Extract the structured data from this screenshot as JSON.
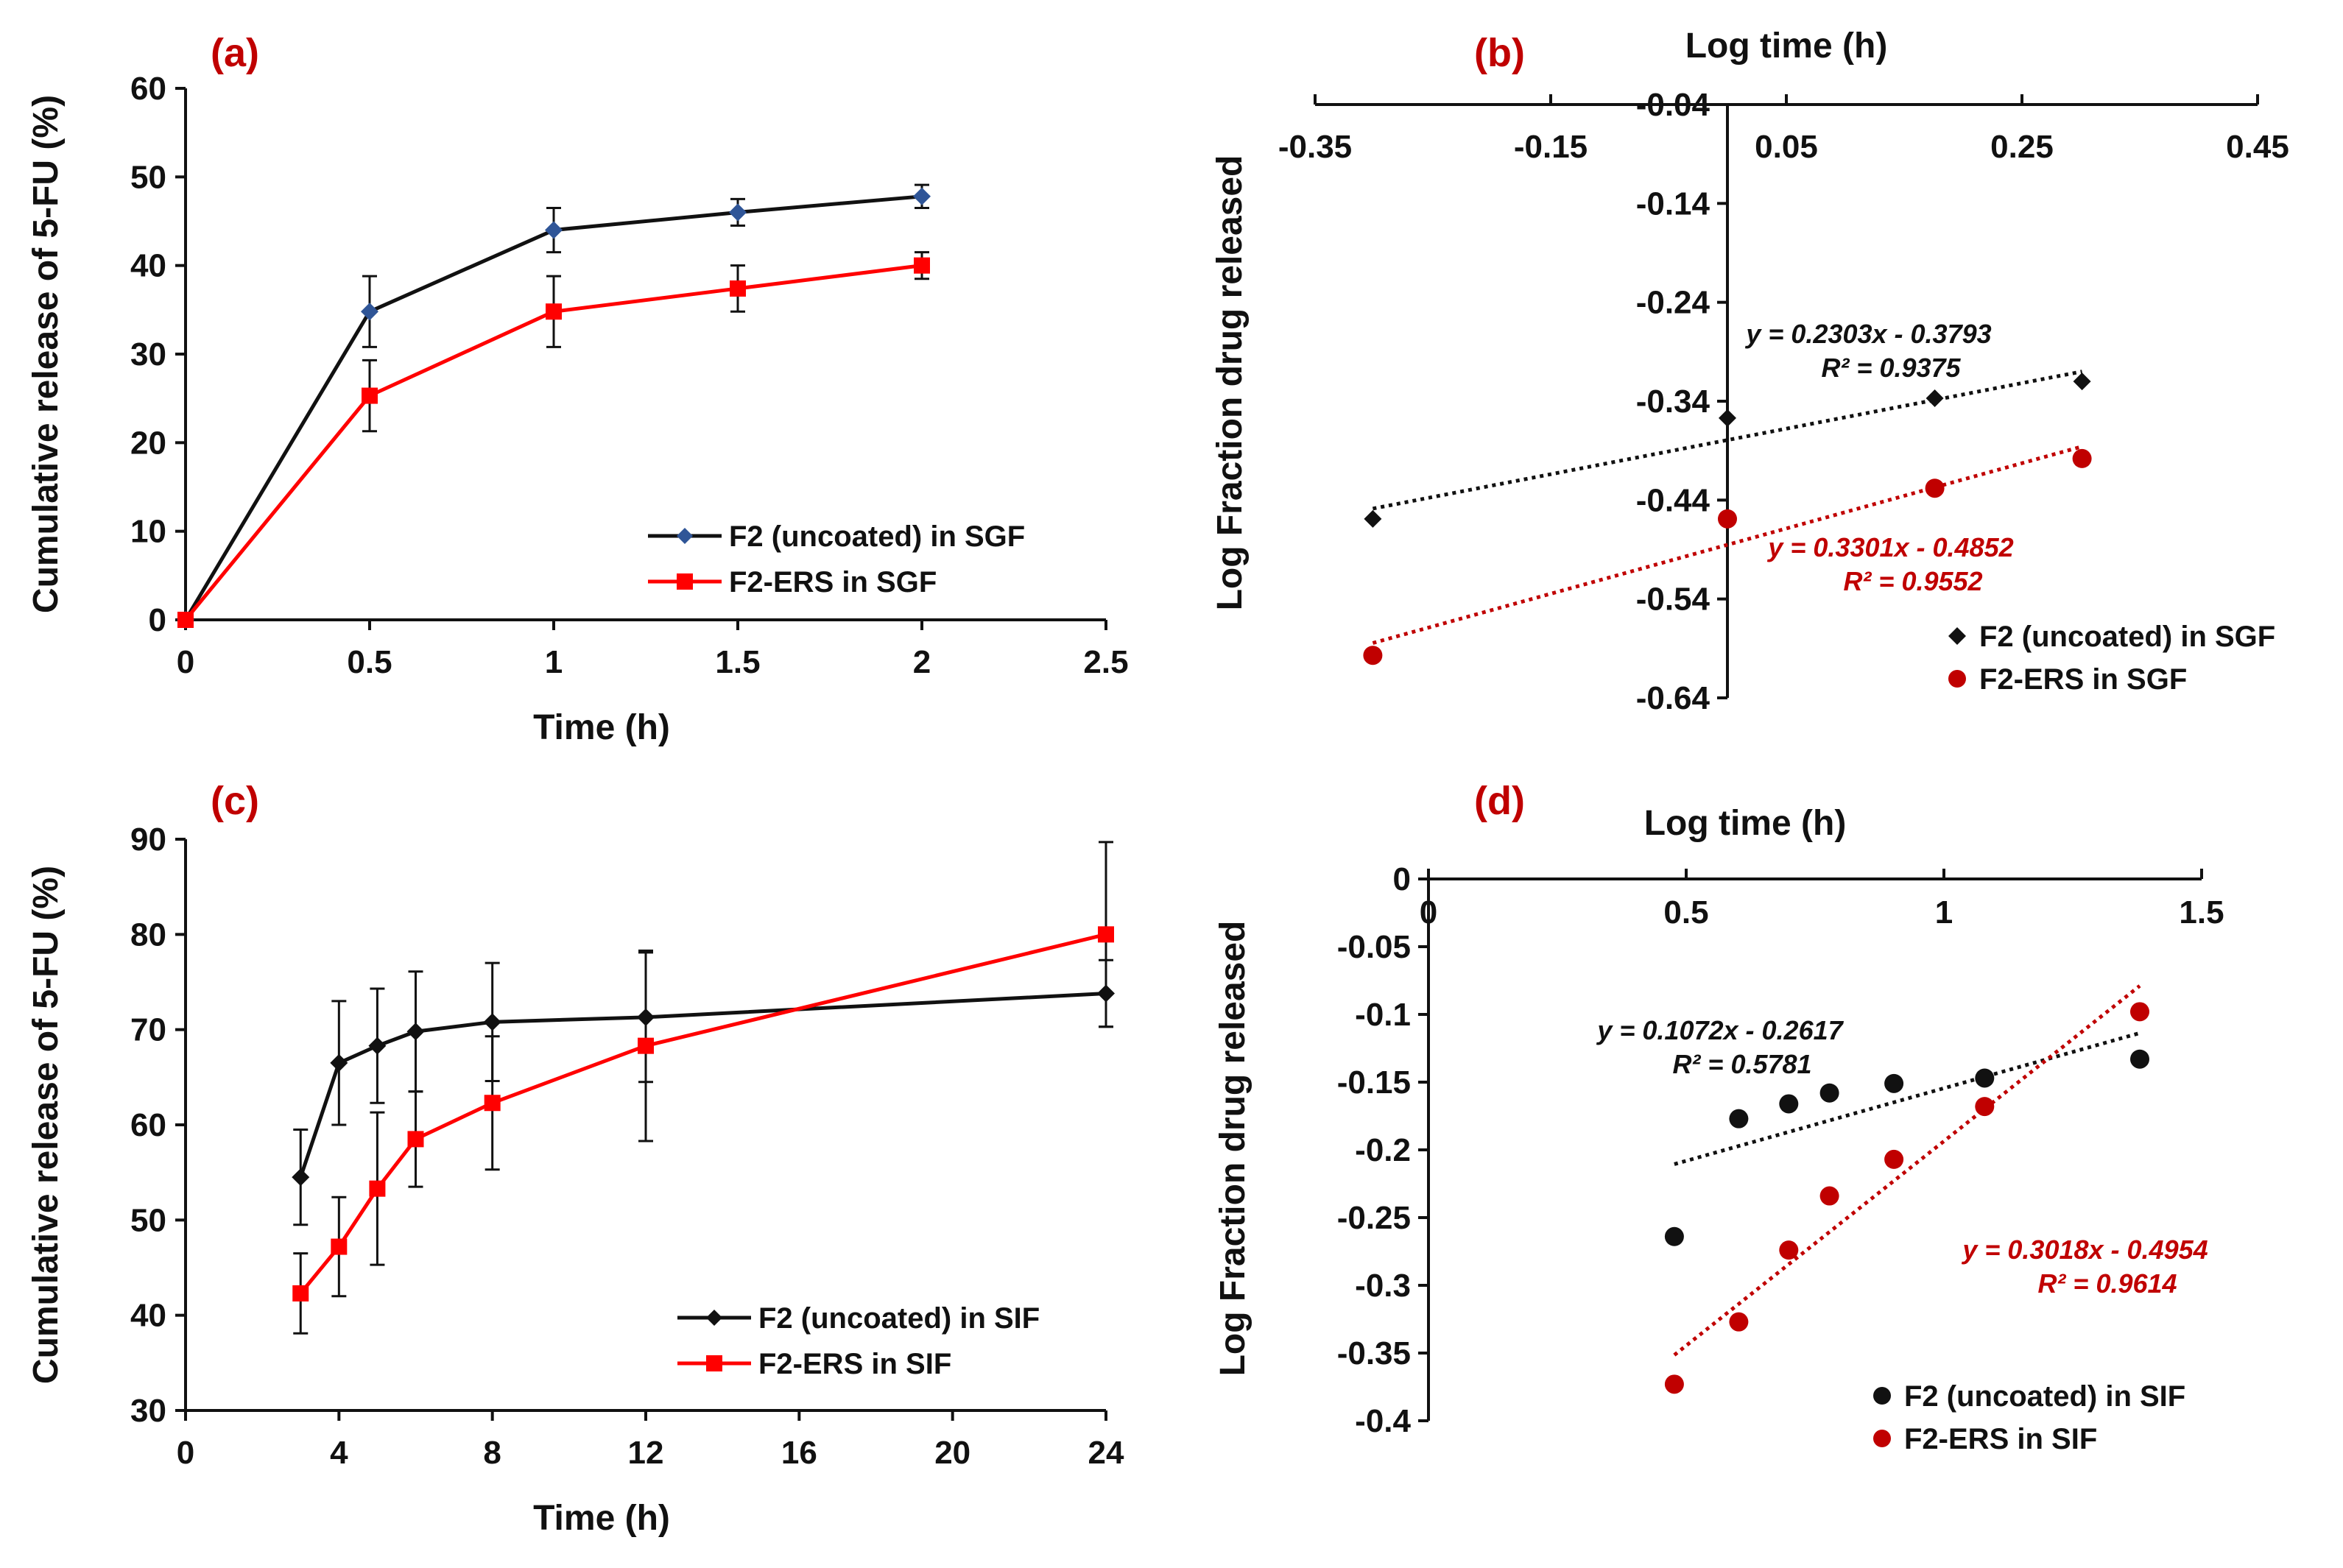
{
  "chart_data": [
    {
      "id": "a",
      "type": "line",
      "panel_label": "(a)",
      "xlabel": "Time (h)",
      "ylabel": "Cumulative release of 5-FU (%)",
      "xlim": [
        0,
        2.5
      ],
      "ylim": [
        0,
        60
      ],
      "x_ticks": [
        "0",
        "0.5",
        "1",
        "1.5",
        "2",
        "2.5"
      ],
      "y_ticks": [
        "0",
        "10",
        "20",
        "30",
        "40",
        "50",
        "60"
      ],
      "legend_position": "bottom-right",
      "series": [
        {
          "name": "F2 (uncoated) in SGF",
          "color": "#111111",
          "marker": "diamond",
          "marker_color": "#2f5597",
          "x": [
            0,
            0.5,
            1,
            1.5,
            2
          ],
          "y": [
            0,
            34.8,
            44,
            46,
            47.8
          ],
          "err": [
            0,
            4,
            2.5,
            1.5,
            1.3
          ]
        },
        {
          "name": "F2-ERS in SGF",
          "color": "#ff0000",
          "marker": "square",
          "marker_color": "#ff0000",
          "x": [
            0,
            0.5,
            1,
            1.5,
            2
          ],
          "y": [
            0,
            25.3,
            34.8,
            37.4,
            40
          ],
          "err": [
            0,
            4,
            4,
            2.6,
            1.5
          ]
        }
      ]
    },
    {
      "id": "b",
      "type": "scatter",
      "panel_label": "(b)",
      "xlabel": "Log time (h)",
      "ylabel": "Log Fraction drug released",
      "xlim": [
        -0.35,
        0.45
      ],
      "ylim": [
        -0.64,
        -0.04
      ],
      "x_ticks": [
        "-0.35",
        "-0.15",
        "0.05",
        "0.25",
        "0.45"
      ],
      "y_ticks": [
        "-0.04",
        "-0.14",
        "-0.24",
        "-0.34",
        "-0.44",
        "-0.54",
        "-0.64"
      ],
      "legend_position": "bottom-right",
      "series": [
        {
          "name": "F2 (uncoated) in SGF",
          "color": "#111111",
          "marker": "diamond",
          "x": [
            -0.301,
            0,
            0.176,
            0.301
          ],
          "y": [
            -0.459,
            -0.357,
            -0.337,
            -0.32
          ],
          "fit": {
            "slope": 0.2303,
            "intercept": -0.3793,
            "equation": "y = 0.2303x - 0.3793",
            "r2": "R² = 0.9375"
          }
        },
        {
          "name": "F2-ERS in SGF",
          "color": "#c00000",
          "marker": "circle",
          "x": [
            -0.301,
            0,
            0.176,
            0.301
          ],
          "y": [
            -0.597,
            -0.459,
            -0.428,
            -0.398
          ],
          "fit": {
            "slope": 0.3301,
            "intercept": -0.4852,
            "equation": "y = 0.3301x - 0.4852",
            "r2": "R² = 0.9552"
          }
        }
      ]
    },
    {
      "id": "c",
      "type": "line",
      "panel_label": "(c)",
      "xlabel": "Time (h)",
      "ylabel": "Cumulative release of 5-FU (%)",
      "x_categories": [
        "0",
        "4",
        "8",
        "12",
        "16",
        "20",
        "24"
      ],
      "x_positions_note": "tick labels evenly spaced; points placed in label units",
      "xlim": [
        0,
        24
      ],
      "ylim": [
        30,
        90
      ],
      "y_ticks": [
        "30",
        "40",
        "50",
        "60",
        "70",
        "80",
        "90"
      ],
      "legend_position": "bottom-right",
      "series": [
        {
          "name": "F2 (uncoated) in SIF",
          "color": "#111111",
          "marker": "diamond",
          "x": [
            3,
            4,
            5,
            6,
            8,
            12,
            24
          ],
          "y": [
            54.5,
            66.5,
            68.3,
            69.8,
            70.8,
            71.3,
            73.8
          ],
          "err": [
            5,
            6.5,
            6,
            6.3,
            6.2,
            6.8,
            3.5
          ]
        },
        {
          "name": "F2-ERS in SIF",
          "color": "#ff0000",
          "marker": "square",
          "x": [
            3,
            4,
            5,
            6,
            8,
            12,
            24
          ],
          "y": [
            42.3,
            47.2,
            53.3,
            58.5,
            62.3,
            68.3,
            80
          ],
          "err": [
            4.2,
            5.2,
            8,
            5,
            7,
            10,
            9.7
          ]
        }
      ]
    },
    {
      "id": "d",
      "type": "scatter",
      "panel_label": "(d)",
      "xlabel": "Log time (h)",
      "ylabel": "Log Fraction drug released",
      "xlim": [
        0,
        1.5
      ],
      "ylim": [
        -0.4,
        0
      ],
      "x_ticks": [
        "0",
        "0.5",
        "1",
        "1.5"
      ],
      "y_ticks": [
        "0",
        "-0.05",
        "-0.1",
        "-0.15",
        "-0.2",
        "-0.25",
        "-0.3",
        "-0.35",
        "-0.4"
      ],
      "legend_position": "bottom-right",
      "series": [
        {
          "name": "F2 (uncoated) in SIF",
          "color": "#111111",
          "marker": "circle",
          "x": [
            0.477,
            0.602,
            0.699,
            0.778,
            0.903,
            1.079,
            1.38
          ],
          "y": [
            -0.264,
            -0.177,
            -0.166,
            -0.158,
            -0.151,
            -0.147,
            -0.133
          ],
          "fit": {
            "slope": 0.1072,
            "intercept": -0.2617,
            "equation": "y = 0.1072x - 0.2617",
            "r2": "R² = 0.5781"
          }
        },
        {
          "name": "F2-ERS in SIF",
          "color": "#c00000",
          "marker": "circle",
          "x": [
            0.477,
            0.602,
            0.699,
            0.778,
            0.903,
            1.079,
            1.38
          ],
          "y": [
            -0.373,
            -0.327,
            -0.274,
            -0.234,
            -0.207,
            -0.168,
            -0.098
          ],
          "fit": {
            "slope": 0.3018,
            "intercept": -0.4954,
            "equation": "y = 0.3018x - 0.4954",
            "r2": "R² = 0.9614"
          }
        }
      ]
    }
  ]
}
